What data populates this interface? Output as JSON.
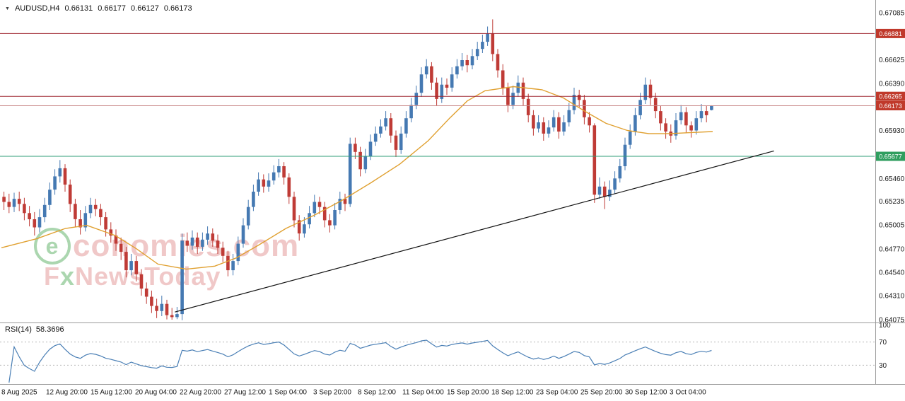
{
  "title_bar": {
    "dropdown_icon": "▼",
    "symbol": "AUDUSD,H4",
    "open": "0.66131",
    "high": "0.66177",
    "low": "0.66127",
    "close": "0.66173"
  },
  "watermark": {
    "e": "e",
    "economies": "conomies",
    "dotcom": ".com",
    "f": "F",
    "x": "x",
    "newstoday": "NewsToday"
  },
  "rsi_panel": {
    "label": "RSI(14)",
    "value": "58.3696"
  },
  "chart_data": {
    "type": "candlestick",
    "symbol": "AUDUSD",
    "timeframe": "H4",
    "current_bar": {
      "open": 0.66131,
      "high": 0.66177,
      "low": 0.66127,
      "close": 0.66173
    },
    "ylim": [
      0.64075,
      0.67085
    ],
    "up_color": "#4579b2",
    "down_color": "#bf3b36",
    "price_axis_ticks": [
      0.67085,
      0.66625,
      0.6639,
      0.6593,
      0.6546,
      0.65235,
      0.65005,
      0.6477,
      0.6454,
      0.6431,
      0.64075
    ],
    "levels": [
      {
        "price": 0.66881,
        "label": "0.66881",
        "type": "resistance",
        "color": "#a02833",
        "badge_color": "#c0392b"
      },
      {
        "price": 0.66265,
        "label": "0.66265",
        "type": "resistance",
        "color": "#a02833",
        "badge_color": "#c0392b"
      },
      {
        "price": 0.66173,
        "label": "0.66173",
        "type": "current_price",
        "color": "#c98a8a",
        "badge_color": "#c0392b"
      },
      {
        "price": 0.65677,
        "label": "0.65677",
        "type": "support",
        "color": "#2f9e77",
        "badge_color": "#2f9e5f"
      }
    ],
    "trendline": {
      "x1_frac": 0.2,
      "price1": 0.6415,
      "x2_frac": 0.885,
      "price2": 0.6573,
      "color": "#111111"
    },
    "ma_line": {
      "name": "moving-average",
      "color": "#e0a030",
      "points": [
        [
          0.0,
          0.6478
        ],
        [
          0.05,
          0.6487
        ],
        [
          0.09,
          0.6497
        ],
        [
          0.12,
          0.65
        ],
        [
          0.16,
          0.649
        ],
        [
          0.19,
          0.6477
        ],
        [
          0.22,
          0.6462
        ],
        [
          0.26,
          0.6457
        ],
        [
          0.3,
          0.646
        ],
        [
          0.33,
          0.6468
        ],
        [
          0.36,
          0.648
        ],
        [
          0.4,
          0.6497
        ],
        [
          0.44,
          0.651
        ],
        [
          0.48,
          0.6525
        ],
        [
          0.52,
          0.6542
        ],
        [
          0.56,
          0.656
        ],
        [
          0.6,
          0.6583
        ],
        [
          0.63,
          0.6605
        ],
        [
          0.655,
          0.6622
        ],
        [
          0.68,
          0.6632
        ],
        [
          0.72,
          0.6636
        ],
        [
          0.76,
          0.6633
        ],
        [
          0.79,
          0.6625
        ],
        [
          0.82,
          0.6612
        ],
        [
          0.85,
          0.66
        ],
        [
          0.88,
          0.6593
        ],
        [
          0.91,
          0.659
        ],
        [
          0.94,
          0.659
        ],
        [
          0.97,
          0.6591
        ],
        [
          1.0,
          0.6592
        ]
      ]
    },
    "x_labels": [
      "8 Aug 2025",
      "12 Aug 20:00",
      "15 Aug 12:00",
      "20 Aug 04:00",
      "22 Aug 20:00",
      "27 Aug 12:00",
      "1 Sep 04:00",
      "3 Sep 20:00",
      "8 Sep 12:00",
      "11 Sep 04:00",
      "15 Sep 20:00",
      "18 Sep 12:00",
      "23 Sep 04:00",
      "25 Sep 20:00",
      "30 Sep 12:00",
      "3 Oct 04:00"
    ],
    "rsi": {
      "period": 14,
      "current": 58.3696,
      "levels": [
        70,
        30
      ],
      "axis_labels": [
        "100",
        "70",
        "30"
      ],
      "color": "#4a7fb5"
    },
    "candles": [
      [
        0.6528,
        0.6533,
        0.6515,
        0.6523
      ],
      [
        0.6523,
        0.6531,
        0.6512,
        0.6518
      ],
      [
        0.6518,
        0.6532,
        0.6513,
        0.6526
      ],
      [
        0.6526,
        0.6533,
        0.6514,
        0.6521
      ],
      [
        0.6521,
        0.6527,
        0.6505,
        0.6512
      ],
      [
        0.6512,
        0.6519,
        0.6499,
        0.6506
      ],
      [
        0.6506,
        0.6513,
        0.649,
        0.6498
      ],
      [
        0.6498,
        0.6516,
        0.6493,
        0.6508
      ],
      [
        0.6508,
        0.6527,
        0.6503,
        0.652
      ],
      [
        0.652,
        0.6542,
        0.6515,
        0.6535
      ],
      [
        0.6535,
        0.6555,
        0.653,
        0.6548
      ],
      [
        0.6548,
        0.6564,
        0.6542,
        0.6556
      ],
      [
        0.6556,
        0.656,
        0.6533,
        0.654
      ],
      [
        0.654,
        0.6545,
        0.6513,
        0.6521
      ],
      [
        0.6521,
        0.6526,
        0.6498,
        0.6506
      ],
      [
        0.6506,
        0.6515,
        0.6491,
        0.6498
      ],
      [
        0.6498,
        0.6519,
        0.6494,
        0.6512
      ],
      [
        0.6512,
        0.6527,
        0.6507,
        0.652
      ],
      [
        0.652,
        0.6526,
        0.6509,
        0.6516
      ],
      [
        0.6516,
        0.6521,
        0.65,
        0.6508
      ],
      [
        0.6508,
        0.6513,
        0.6489,
        0.6496
      ],
      [
        0.6496,
        0.6503,
        0.6483,
        0.649
      ],
      [
        0.649,
        0.6496,
        0.6475,
        0.6482
      ],
      [
        0.6482,
        0.6488,
        0.6466,
        0.6474
      ],
      [
        0.6474,
        0.6479,
        0.6449,
        0.6456
      ],
      [
        0.6456,
        0.6472,
        0.6451,
        0.6465
      ],
      [
        0.6465,
        0.647,
        0.6445,
        0.6452
      ],
      [
        0.6452,
        0.6457,
        0.6431,
        0.6438
      ],
      [
        0.6438,
        0.6444,
        0.6423,
        0.643
      ],
      [
        0.643,
        0.6436,
        0.6414,
        0.6421
      ],
      [
        0.6421,
        0.6428,
        0.6409,
        0.6416
      ],
      [
        0.6416,
        0.6431,
        0.6411,
        0.6423
      ],
      [
        0.6423,
        0.6427,
        0.64078,
        0.6412
      ],
      [
        0.6412,
        0.6419,
        0.64075,
        0.641
      ],
      [
        0.641,
        0.642,
        0.6408,
        0.6413
      ],
      [
        0.6413,
        0.6492,
        0.6407,
        0.6485
      ],
      [
        0.6485,
        0.6493,
        0.6474,
        0.648
      ],
      [
        0.648,
        0.6495,
        0.6476,
        0.6488
      ],
      [
        0.6488,
        0.6493,
        0.6472,
        0.6479
      ],
      [
        0.6479,
        0.6493,
        0.6475,
        0.6486
      ],
      [
        0.6486,
        0.6499,
        0.6481,
        0.6492
      ],
      [
        0.6492,
        0.6497,
        0.6479,
        0.6485
      ],
      [
        0.6485,
        0.6491,
        0.6472,
        0.6478
      ],
      [
        0.6478,
        0.6484,
        0.6464,
        0.647
      ],
      [
        0.647,
        0.6475,
        0.645,
        0.6456
      ],
      [
        0.6456,
        0.6472,
        0.6451,
        0.6465
      ],
      [
        0.6465,
        0.6489,
        0.6461,
        0.6482
      ],
      [
        0.6482,
        0.6507,
        0.6478,
        0.65
      ],
      [
        0.65,
        0.6525,
        0.6496,
        0.6518
      ],
      [
        0.6518,
        0.654,
        0.6514,
        0.6533
      ],
      [
        0.6533,
        0.6552,
        0.6529,
        0.6545
      ],
      [
        0.6545,
        0.655,
        0.6532,
        0.6538
      ],
      [
        0.6538,
        0.6551,
        0.6533,
        0.6544
      ],
      [
        0.6544,
        0.6559,
        0.654,
        0.6552
      ],
      [
        0.6552,
        0.6565,
        0.6547,
        0.6558
      ],
      [
        0.6558,
        0.6562,
        0.654,
        0.6547
      ],
      [
        0.6547,
        0.6551,
        0.6521,
        0.6528
      ],
      [
        0.6528,
        0.6533,
        0.6498,
        0.6505
      ],
      [
        0.6505,
        0.651,
        0.6485,
        0.6492
      ],
      [
        0.6492,
        0.6508,
        0.6488,
        0.6501
      ],
      [
        0.6501,
        0.6519,
        0.6497,
        0.6512
      ],
      [
        0.6512,
        0.653,
        0.6508,
        0.6523
      ],
      [
        0.6523,
        0.6528,
        0.6511,
        0.6518
      ],
      [
        0.6518,
        0.6523,
        0.6498,
        0.6505
      ],
      [
        0.6505,
        0.6511,
        0.6493,
        0.65
      ],
      [
        0.65,
        0.6522,
        0.6496,
        0.6515
      ],
      [
        0.6515,
        0.6533,
        0.6511,
        0.6526
      ],
      [
        0.6526,
        0.6531,
        0.6514,
        0.6521
      ],
      [
        0.6521,
        0.6586,
        0.6518,
        0.658
      ],
      [
        0.658,
        0.6586,
        0.6565,
        0.6572
      ],
      [
        0.6572,
        0.6577,
        0.6548,
        0.6555
      ],
      [
        0.6555,
        0.6575,
        0.6551,
        0.6568
      ],
      [
        0.6568,
        0.6589,
        0.6564,
        0.6582
      ],
      [
        0.6582,
        0.6597,
        0.6578,
        0.659
      ],
      [
        0.659,
        0.6604,
        0.6586,
        0.6597
      ],
      [
        0.6597,
        0.6612,
        0.6593,
        0.6605
      ],
      [
        0.6605,
        0.661,
        0.6581,
        0.6588
      ],
      [
        0.6588,
        0.6593,
        0.6567,
        0.6574
      ],
      [
        0.6574,
        0.6597,
        0.657,
        0.659
      ],
      [
        0.659,
        0.6612,
        0.6586,
        0.6605
      ],
      [
        0.6605,
        0.6625,
        0.6601,
        0.6618
      ],
      [
        0.6618,
        0.6637,
        0.6614,
        0.663
      ],
      [
        0.663,
        0.6655,
        0.6626,
        0.6648
      ],
      [
        0.6648,
        0.6663,
        0.6644,
        0.6656
      ],
      [
        0.6656,
        0.666,
        0.6633,
        0.664
      ],
      [
        0.664,
        0.6645,
        0.6617,
        0.6624
      ],
      [
        0.6624,
        0.6645,
        0.662,
        0.6638
      ],
      [
        0.6638,
        0.6644,
        0.6628,
        0.6635
      ],
      [
        0.6635,
        0.6655,
        0.6631,
        0.6648
      ],
      [
        0.6648,
        0.6663,
        0.6644,
        0.6656
      ],
      [
        0.6656,
        0.6669,
        0.6652,
        0.6662
      ],
      [
        0.6662,
        0.6667,
        0.665,
        0.6657
      ],
      [
        0.6657,
        0.6673,
        0.6653,
        0.6666
      ],
      [
        0.6666,
        0.668,
        0.6662,
        0.6673
      ],
      [
        0.6673,
        0.6687,
        0.6669,
        0.668
      ],
      [
        0.668,
        0.6695,
        0.6676,
        0.6688
      ],
      [
        0.6688,
        0.6702,
        0.6661,
        0.6668
      ],
      [
        0.6668,
        0.6673,
        0.6645,
        0.6652
      ],
      [
        0.6652,
        0.6658,
        0.6628,
        0.6635
      ],
      [
        0.6635,
        0.664,
        0.6611,
        0.6618
      ],
      [
        0.6618,
        0.6637,
        0.6614,
        0.663
      ],
      [
        0.663,
        0.6647,
        0.6626,
        0.664
      ],
      [
        0.664,
        0.6645,
        0.6617,
        0.6624
      ],
      [
        0.6624,
        0.6629,
        0.6601,
        0.6608
      ],
      [
        0.6608,
        0.6613,
        0.6588,
        0.6595
      ],
      [
        0.6595,
        0.6608,
        0.6591,
        0.6601
      ],
      [
        0.6601,
        0.6606,
        0.6583,
        0.659
      ],
      [
        0.659,
        0.6603,
        0.6586,
        0.6596
      ],
      [
        0.6596,
        0.6613,
        0.6592,
        0.6606
      ],
      [
        0.6606,
        0.6611,
        0.6585,
        0.6592
      ],
      [
        0.6592,
        0.6608,
        0.6588,
        0.6601
      ],
      [
        0.6601,
        0.662,
        0.6597,
        0.6613
      ],
      [
        0.6613,
        0.6635,
        0.6609,
        0.6628
      ],
      [
        0.6628,
        0.6633,
        0.6616,
        0.6623
      ],
      [
        0.6623,
        0.6628,
        0.6599,
        0.6606
      ],
      [
        0.6606,
        0.6611,
        0.6591,
        0.6598
      ],
      [
        0.6598,
        0.66,
        0.6522,
        0.653
      ],
      [
        0.653,
        0.6547,
        0.6526,
        0.6538
      ],
      [
        0.6538,
        0.6543,
        0.6516,
        0.6528
      ],
      [
        0.6528,
        0.6544,
        0.6524,
        0.6535
      ],
      [
        0.6535,
        0.6553,
        0.6531,
        0.6546
      ],
      [
        0.6546,
        0.6565,
        0.6542,
        0.6558
      ],
      [
        0.6558,
        0.6586,
        0.6554,
        0.6579
      ],
      [
        0.6579,
        0.6599,
        0.6575,
        0.6592
      ],
      [
        0.6592,
        0.6615,
        0.6588,
        0.6608
      ],
      [
        0.6608,
        0.663,
        0.6604,
        0.6623
      ],
      [
        0.6623,
        0.6645,
        0.6619,
        0.6638
      ],
      [
        0.6638,
        0.6643,
        0.6618,
        0.6625
      ],
      [
        0.6625,
        0.663,
        0.6605,
        0.6612
      ],
      [
        0.6612,
        0.6617,
        0.6593,
        0.66
      ],
      [
        0.66,
        0.6605,
        0.6585,
        0.6592
      ],
      [
        0.6592,
        0.6599,
        0.6581,
        0.6588
      ],
      [
        0.6588,
        0.661,
        0.6584,
        0.6603
      ],
      [
        0.6603,
        0.6618,
        0.6599,
        0.6611
      ],
      [
        0.6611,
        0.6616,
        0.6591,
        0.6598
      ],
      [
        0.6598,
        0.6602,
        0.6586,
        0.6593
      ],
      [
        0.6593,
        0.6612,
        0.6589,
        0.6605
      ],
      [
        0.6605,
        0.6619,
        0.6601,
        0.6612
      ],
      [
        0.6612,
        0.6617,
        0.6601,
        0.6608
      ],
      [
        0.66131,
        0.66177,
        0.66127,
        0.66173
      ]
    ]
  }
}
